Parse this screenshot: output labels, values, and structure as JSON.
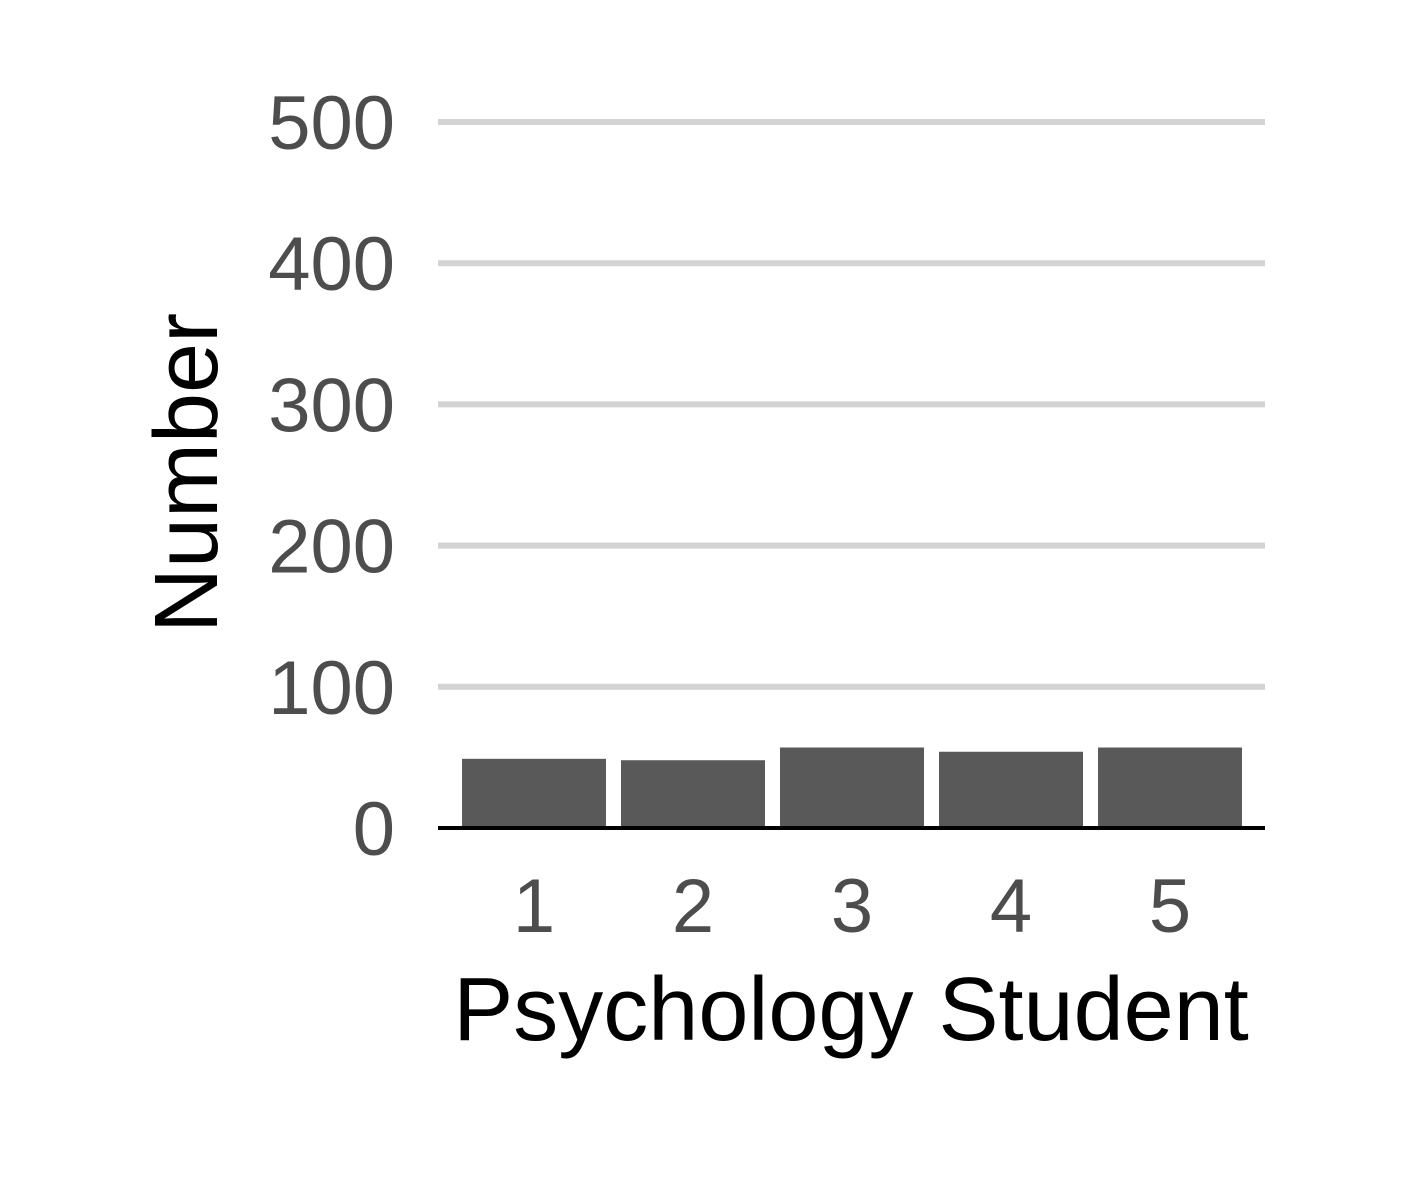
{
  "chart_data": {
    "type": "bar",
    "title": "",
    "xlabel": "Psychology Student",
    "ylabel": "Number",
    "categories": [
      "1",
      "2",
      "3",
      "4",
      "5"
    ],
    "values": [
      49,
      48,
      57,
      54,
      57
    ],
    "ylim": [
      0,
      500
    ],
    "yticks": [
      "0",
      "100",
      "200",
      "300",
      "400",
      "500"
    ],
    "ytick_values": [
      0,
      100,
      200,
      300,
      400,
      500
    ],
    "grid": true,
    "legend": "none",
    "colors": {
      "bar": "#595959",
      "grid": "#d3d3d3",
      "axis_line": "#000000",
      "tick_text": "#4d4d4d",
      "title_text": "#000000"
    }
  }
}
